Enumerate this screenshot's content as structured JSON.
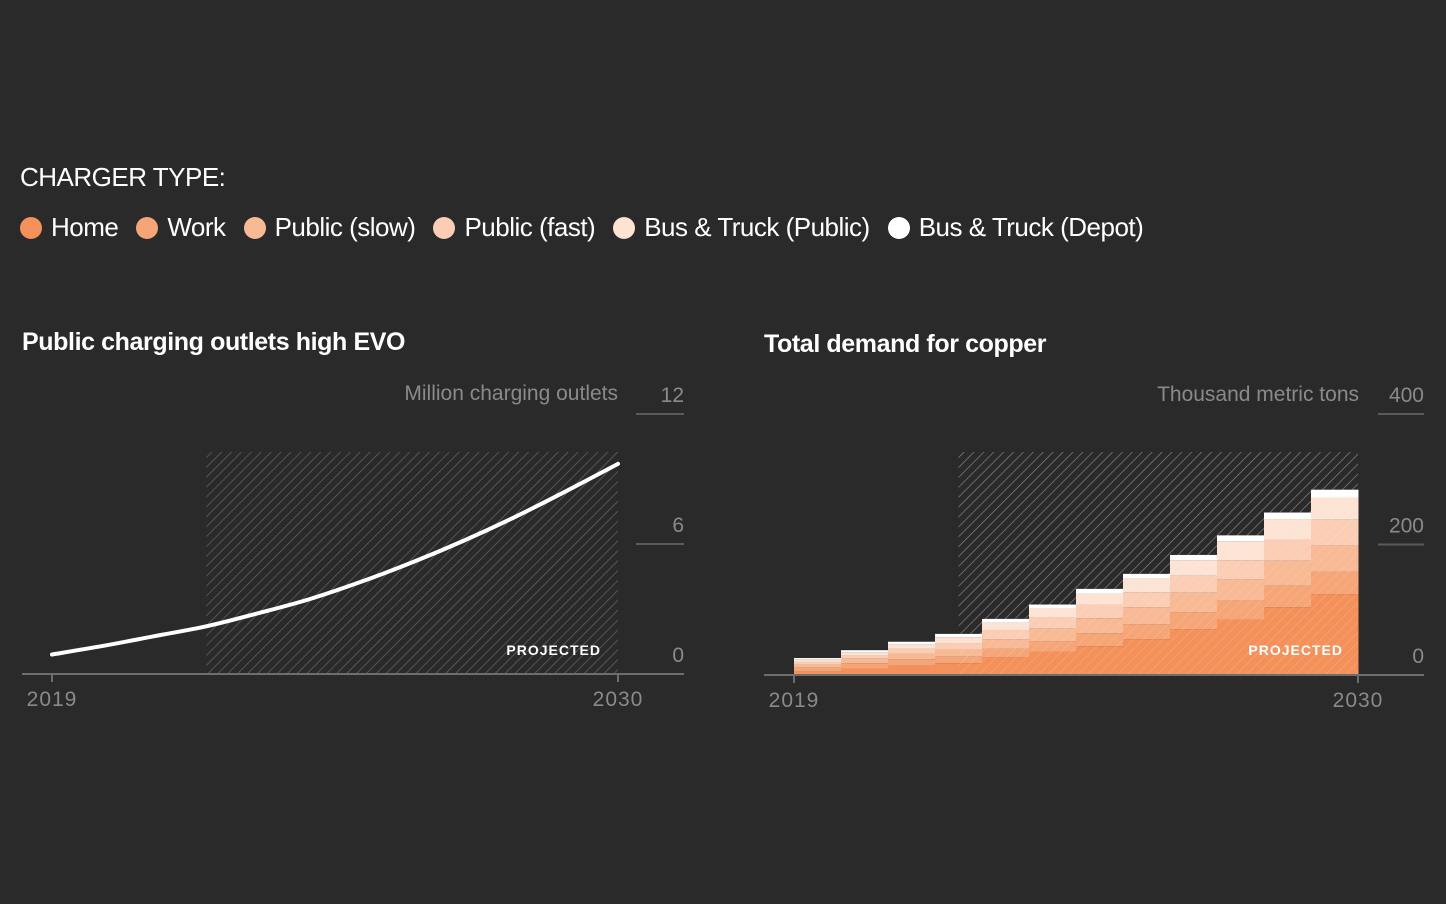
{
  "legend": {
    "title": "CHARGER TYPE:",
    "items": [
      {
        "label": "Home",
        "color": "#f4915a"
      },
      {
        "label": "Work",
        "color": "#f6a577"
      },
      {
        "label": "Public (slow)",
        "color": "#f8b995"
      },
      {
        "label": "Public (fast)",
        "color": "#facdb4"
      },
      {
        "label": "Bus & Truck (Public)",
        "color": "#fce3d4"
      },
      {
        "label": "Bus & Truck (Depot)",
        "color": "#ffffff"
      }
    ]
  },
  "chart_data": [
    {
      "type": "line",
      "title": "Public charging outlets high EVO",
      "ylabel": "Million charging outlets",
      "ylim": [
        0,
        12
      ],
      "yticks": [
        "0",
        "6",
        "12"
      ],
      "xticks": [
        "2019",
        "2030"
      ],
      "projected_label": "PROJECTED",
      "projected_from": 2022,
      "x": [
        2019,
        2020,
        2021,
        2022,
        2023,
        2024,
        2025,
        2026,
        2027,
        2028,
        2029,
        2030
      ],
      "series": [
        {
          "values": [
            0.9,
            1.3,
            1.75,
            2.2,
            2.8,
            3.45,
            4.25,
            5.15,
            6.15,
            7.25,
            8.45,
            9.7
          ]
        }
      ]
    },
    {
      "type": "area",
      "title": "Total demand for copper",
      "ylabel": "Thousand metric tons",
      "ylim": [
        0,
        400
      ],
      "yticks": [
        "0",
        "200",
        "400"
      ],
      "xticks": [
        "2019",
        "2030"
      ],
      "projected_label": "PROJECTED",
      "projected_from": 2022,
      "x": [
        2019,
        2020,
        2021,
        2022,
        2023,
        2024,
        2025,
        2026,
        2027,
        2028,
        2029,
        2030
      ],
      "series": [
        {
          "name": "Home",
          "values": [
            5,
            10,
            14,
            18,
            27,
            36,
            44,
            55,
            70,
            85,
            104,
            124
          ]
        },
        {
          "name": "Work",
          "values": [
            6,
            8,
            10,
            10,
            13,
            16,
            20,
            23,
            26,
            29,
            33,
            34
          ]
        },
        {
          "name": "Public (slow)",
          "values": [
            5,
            7,
            9,
            11,
            15,
            19,
            23,
            26,
            30,
            33,
            38,
            40
          ]
        },
        {
          "name": "Public (fast)",
          "values": [
            4,
            5,
            7,
            10,
            14,
            17,
            21,
            23,
            26,
            29,
            32,
            40
          ]
        },
        {
          "name": "Bus & Truck (Public)",
          "values": [
            4,
            5,
            7,
            9,
            11,
            14,
            17,
            21,
            24,
            29,
            32,
            34
          ]
        },
        {
          "name": "Bus & Truck (Depot)",
          "values": [
            2,
            3,
            4,
            5,
            6,
            6,
            7,
            7,
            8,
            9,
            10,
            12
          ]
        }
      ]
    }
  ]
}
